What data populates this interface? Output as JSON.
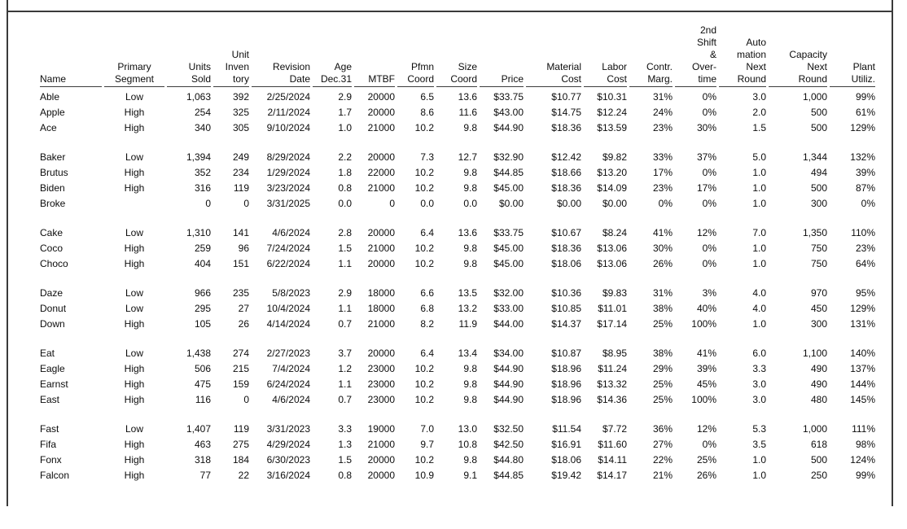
{
  "report": {
    "table": {
      "columns": [
        {
          "id": "name",
          "label": "Name"
        },
        {
          "id": "primary-segment",
          "label": "Primary\nSegment"
        },
        {
          "id": "units-sold",
          "label": "Units\nSold"
        },
        {
          "id": "unit-inventory",
          "label": "Unit\nInven\ntory"
        },
        {
          "id": "revision-date",
          "label": "Revision\nDate"
        },
        {
          "id": "age-dec31",
          "label": "Age\nDec.31"
        },
        {
          "id": "mtbf",
          "label": "MTBF"
        },
        {
          "id": "pfmn-coord",
          "label": "Pfmn\nCoord"
        },
        {
          "id": "size-coord",
          "label": "Size\nCoord"
        },
        {
          "id": "price",
          "label": "Price"
        },
        {
          "id": "material-cost",
          "label": "Material\nCost"
        },
        {
          "id": "labor-cost",
          "label": "Labor\nCost"
        },
        {
          "id": "contr-marg",
          "label": "Contr.\nMarg."
        },
        {
          "id": "second-shift-overtime",
          "label": "2nd\nShift\n&\nOver-\ntime"
        },
        {
          "id": "automation-next-round",
          "label": "Auto\nmation\nNext\nRound"
        },
        {
          "id": "capacity-next-round",
          "label": "Capacity\nNext\nRound"
        },
        {
          "id": "plant-utiliz",
          "label": "Plant\nUtiliz."
        }
      ],
      "groups": [
        {
          "rows": [
            [
              "Able",
              "Low",
              "1,063",
              "392",
              "2/25/2024",
              "2.9",
              "20000",
              "6.5",
              "13.6",
              "$33.75",
              "$10.77",
              "$10.31",
              "31%",
              "0%",
              "3.0",
              "1,000",
              "99%"
            ],
            [
              "Apple",
              "High",
              "254",
              "325",
              "2/11/2024",
              "1.7",
              "20000",
              "8.6",
              "11.6",
              "$43.00",
              "$14.75",
              "$12.24",
              "24%",
              "0%",
              "2.0",
              "500",
              "61%"
            ],
            [
              "Ace",
              "High",
              "340",
              "305",
              "9/10/2024",
              "1.0",
              "21000",
              "10.2",
              "9.8",
              "$44.90",
              "$18.36",
              "$13.59",
              "23%",
              "30%",
              "1.5",
              "500",
              "129%"
            ]
          ]
        },
        {
          "rows": [
            [
              "Baker",
              "Low",
              "1,394",
              "249",
              "8/29/2024",
              "2.2",
              "20000",
              "7.3",
              "12.7",
              "$32.90",
              "$12.42",
              "$9.82",
              "33%",
              "37%",
              "5.0",
              "1,344",
              "132%"
            ],
            [
              "Brutus",
              "High",
              "352",
              "234",
              "1/29/2024",
              "1.8",
              "22000",
              "10.2",
              "9.8",
              "$44.85",
              "$18.66",
              "$13.20",
              "17%",
              "0%",
              "1.0",
              "494",
              "39%"
            ],
            [
              "Biden",
              "High",
              "316",
              "119",
              "3/23/2024",
              "0.8",
              "21000",
              "10.2",
              "9.8",
              "$45.00",
              "$18.36",
              "$14.09",
              "23%",
              "17%",
              "1.0",
              "500",
              "87%"
            ],
            [
              "Broke",
              "",
              "0",
              "0",
              "3/31/2025",
              "0.0",
              "0",
              "0.0",
              "0.0",
              "$0.00",
              "$0.00",
              "$0.00",
              "0%",
              "0%",
              "1.0",
              "300",
              "0%"
            ]
          ]
        },
        {
          "rows": [
            [
              "Cake",
              "Low",
              "1,310",
              "141",
              "4/6/2024",
              "2.8",
              "20000",
              "6.4",
              "13.6",
              "$33.75",
              "$10.67",
              "$8.24",
              "41%",
              "12%",
              "7.0",
              "1,350",
              "110%"
            ],
            [
              "Coco",
              "High",
              "259",
              "96",
              "7/24/2024",
              "1.5",
              "21000",
              "10.2",
              "9.8",
              "$45.00",
              "$18.36",
              "$13.06",
              "30%",
              "0%",
              "1.0",
              "750",
              "23%"
            ],
            [
              "Choco",
              "High",
              "404",
              "151",
              "6/22/2024",
              "1.1",
              "20000",
              "10.2",
              "9.8",
              "$45.00",
              "$18.06",
              "$13.06",
              "26%",
              "0%",
              "1.0",
              "750",
              "64%"
            ]
          ]
        },
        {
          "rows": [
            [
              "Daze",
              "Low",
              "966",
              "235",
              "5/8/2023",
              "2.9",
              "18000",
              "6.6",
              "13.5",
              "$32.00",
              "$10.36",
              "$9.83",
              "31%",
              "3%",
              "4.0",
              "970",
              "95%"
            ],
            [
              "Donut",
              "Low",
              "295",
              "27",
              "10/4/2024",
              "1.1",
              "18000",
              "6.8",
              "13.2",
              "$33.00",
              "$10.85",
              "$11.01",
              "38%",
              "40%",
              "4.0",
              "450",
              "129%"
            ],
            [
              "Down",
              "High",
              "105",
              "26",
              "4/14/2024",
              "0.7",
              "21000",
              "8.2",
              "11.9",
              "$44.00",
              "$14.37",
              "$17.14",
              "25%",
              "100%",
              "1.0",
              "300",
              "131%"
            ]
          ]
        },
        {
          "rows": [
            [
              "Eat",
              "Low",
              "1,438",
              "274",
              "2/27/2023",
              "3.7",
              "20000",
              "6.4",
              "13.4",
              "$34.00",
              "$10.87",
              "$8.95",
              "38%",
              "41%",
              "6.0",
              "1,100",
              "140%"
            ],
            [
              "Eagle",
              "High",
              "506",
              "215",
              "7/4/2024",
              "1.2",
              "23000",
              "10.2",
              "9.8",
              "$44.90",
              "$18.96",
              "$11.24",
              "29%",
              "39%",
              "3.3",
              "490",
              "137%"
            ],
            [
              "Earnst",
              "High",
              "475",
              "159",
              "6/24/2024",
              "1.1",
              "23000",
              "10.2",
              "9.8",
              "$44.90",
              "$18.96",
              "$13.32",
              "25%",
              "45%",
              "3.0",
              "490",
              "144%"
            ],
            [
              "East",
              "High",
              "116",
              "0",
              "4/6/2024",
              "0.7",
              "23000",
              "10.2",
              "9.8",
              "$44.90",
              "$18.96",
              "$14.36",
              "25%",
              "100%",
              "3.0",
              "480",
              "145%"
            ]
          ]
        },
        {
          "rows": [
            [
              "Fast",
              "Low",
              "1,407",
              "119",
              "3/31/2023",
              "3.3",
              "19000",
              "7.0",
              "13.0",
              "$32.50",
              "$11.54",
              "$7.72",
              "36%",
              "12%",
              "5.3",
              "1,000",
              "111%"
            ],
            [
              "Fifa",
              "High",
              "463",
              "275",
              "4/29/2024",
              "1.3",
              "21000",
              "9.7",
              "10.8",
              "$42.50",
              "$16.91",
              "$11.60",
              "27%",
              "0%",
              "3.5",
              "618",
              "98%"
            ],
            [
              "Fonx",
              "High",
              "318",
              "184",
              "6/30/2023",
              "1.5",
              "20000",
              "10.2",
              "9.8",
              "$44.80",
              "$18.06",
              "$14.11",
              "22%",
              "25%",
              "1.0",
              "500",
              "124%"
            ],
            [
              "Falcon",
              "High",
              "77",
              "22",
              "3/16/2024",
              "0.8",
              "20000",
              "10.9",
              "9.1",
              "$44.85",
              "$19.42",
              "$14.17",
              "21%",
              "26%",
              "1.0",
              "250",
              "99%"
            ]
          ]
        }
      ]
    }
  }
}
